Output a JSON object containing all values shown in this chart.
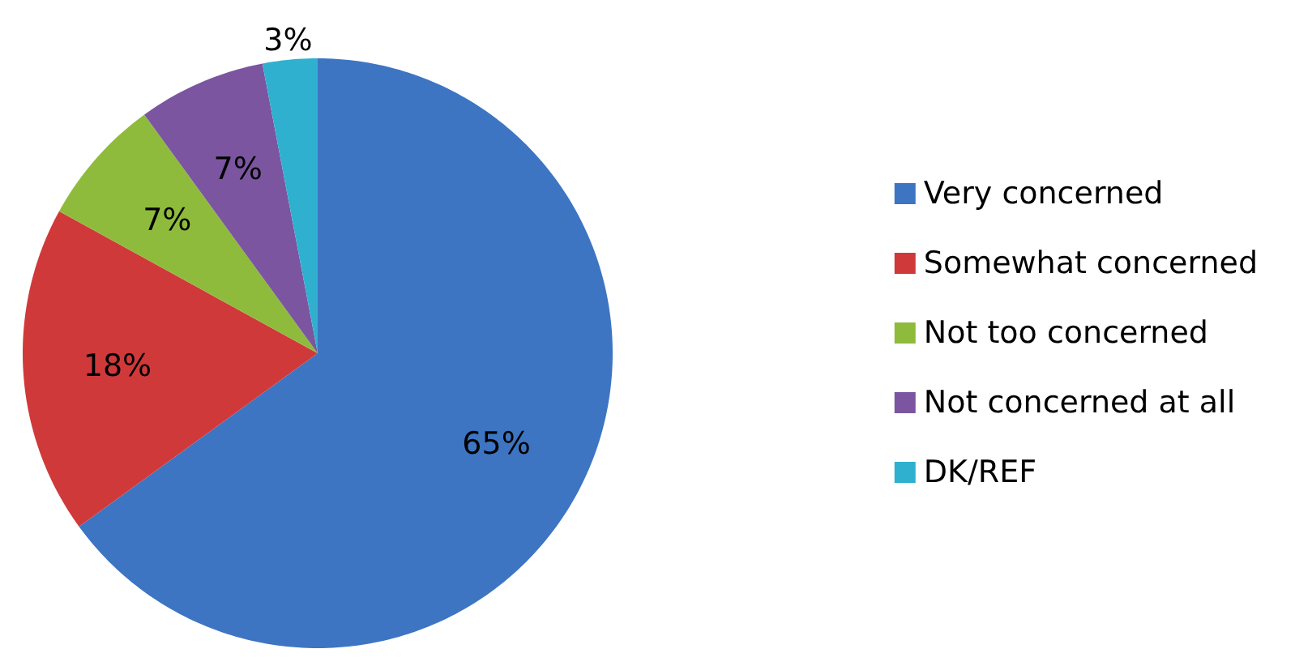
{
  "chart_data": {
    "type": "pie",
    "categories": [
      "Very concerned",
      "Somewhat concerned",
      "Not too concerned",
      "Not concerned at all",
      "DK/REF"
    ],
    "values": [
      65,
      18,
      7,
      7,
      3
    ],
    "colors": [
      "#3d75c2",
      "#d0393a",
      "#8fbb3c",
      "#7b559f",
      "#30b0cf"
    ],
    "value_labels": [
      "65%",
      "18%",
      "7%",
      "7%",
      "3%"
    ],
    "legend": "right"
  }
}
